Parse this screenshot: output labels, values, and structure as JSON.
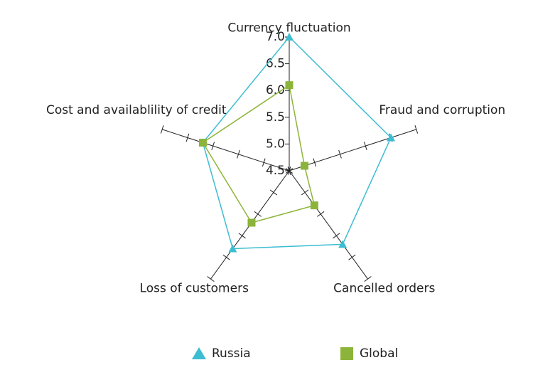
{
  "chart_data": {
    "type": "radar",
    "categories": [
      "Currency fluctuation",
      "Fraud and corruption",
      "Cancelled orders",
      "Loss of customers",
      "Cost and availablility of credit"
    ],
    "series": [
      {
        "name": "Russia",
        "color": "#3dbdd1",
        "values": [
          7.0,
          6.5,
          6.2,
          6.3,
          6.2
        ]
      },
      {
        "name": "Global",
        "color": "#8db43a",
        "values": [
          6.1,
          4.8,
          5.3,
          5.7,
          6.2
        ]
      }
    ],
    "ylim": [
      4.5,
      7.0
    ],
    "yticks": [
      4.5,
      {
        "value": 5,
        "label": "5.0"
      },
      5.5,
      {
        "value": 6,
        "label": "6.0"
      },
      6.5,
      {
        "value": 7,
        "label": "7.0"
      }
    ],
    "legend": "bottom"
  }
}
